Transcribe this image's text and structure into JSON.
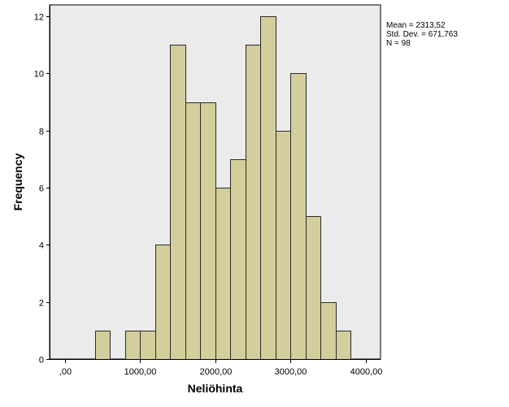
{
  "colors": {
    "plot_background": "#ebebeb",
    "bar_fill": "#d3ce9b",
    "bar_stroke": "#2a2a2a",
    "axis": "#000000"
  },
  "stats": {
    "mean": "Mean = 2313,52",
    "std_dev": "Std. Dev. = 671,763",
    "n": "N = 98"
  },
  "chart_data": {
    "type": "bar",
    "subtype": "histogram",
    "title": "",
    "xlabel": "Neliöhinta",
    "ylabel": "Frequency",
    "xlim": [
      -200,
      4200
    ],
    "ylim": [
      0,
      12.4
    ],
    "x_ticks": [
      0,
      1000,
      2000,
      3000,
      4000
    ],
    "x_tick_labels": [
      ",00",
      "1000,00",
      "2000,00",
      "3000,00",
      "4000,00"
    ],
    "y_ticks": [
      0,
      2,
      4,
      6,
      8,
      10,
      12
    ],
    "y_tick_labels": [
      "0",
      "2",
      "4",
      "6",
      "8",
      "10",
      "12"
    ],
    "grid": false,
    "bins": [
      {
        "x0": 400,
        "x1": 600,
        "count": 1
      },
      {
        "x0": 800,
        "x1": 1000,
        "count": 1
      },
      {
        "x0": 1000,
        "x1": 1200,
        "count": 1
      },
      {
        "x0": 1200,
        "x1": 1400,
        "count": 4
      },
      {
        "x0": 1400,
        "x1": 1600,
        "count": 11
      },
      {
        "x0": 1600,
        "x1": 1800,
        "count": 9
      },
      {
        "x0": 1800,
        "x1": 2000,
        "count": 9
      },
      {
        "x0": 2000,
        "x1": 2200,
        "count": 6
      },
      {
        "x0": 2200,
        "x1": 2400,
        "count": 7
      },
      {
        "x0": 2400,
        "x1": 2600,
        "count": 11
      },
      {
        "x0": 2600,
        "x1": 2800,
        "count": 12
      },
      {
        "x0": 2800,
        "x1": 3000,
        "count": 8
      },
      {
        "x0": 3000,
        "x1": 3200,
        "count": 10
      },
      {
        "x0": 3200,
        "x1": 3400,
        "count": 5
      },
      {
        "x0": 3400,
        "x1": 3600,
        "count": 2
      },
      {
        "x0": 3600,
        "x1": 3800,
        "count": 1
      }
    ]
  }
}
